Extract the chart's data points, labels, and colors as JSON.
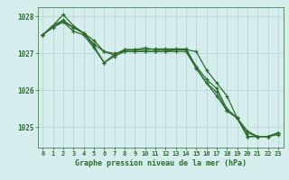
{
  "x": [
    0,
    1,
    2,
    3,
    4,
    5,
    6,
    7,
    8,
    9,
    10,
    11,
    12,
    13,
    14,
    15,
    16,
    17,
    18,
    19,
    20,
    21,
    22,
    23
  ],
  "line1": [
    1027.5,
    1027.7,
    1027.85,
    1027.7,
    1027.55,
    1027.25,
    1027.05,
    1027.0,
    1027.05,
    1027.05,
    1027.05,
    1027.05,
    1027.05,
    1027.1,
    1027.1,
    1026.6,
    1026.2,
    1025.85,
    1025.45,
    1025.25,
    1024.75,
    1024.75,
    1024.75,
    1024.85
  ],
  "line2": [
    1027.5,
    1027.75,
    1028.05,
    1027.75,
    1027.55,
    1027.2,
    1026.75,
    1026.97,
    1027.1,
    1027.1,
    1027.15,
    1027.1,
    1027.1,
    1027.1,
    1027.1,
    1027.05,
    1026.55,
    1026.2,
    1025.85,
    1025.25,
    1024.9,
    1024.75,
    1024.75,
    1024.85
  ],
  "line3": [
    1027.5,
    1027.75,
    1027.85,
    1027.6,
    1027.5,
    1027.15,
    1026.75,
    1026.92,
    1027.05,
    1027.05,
    1027.05,
    1027.05,
    1027.05,
    1027.05,
    1027.05,
    1026.6,
    1026.2,
    1025.95,
    1025.45,
    1025.25,
    1024.75,
    1024.75,
    1024.75,
    1024.85
  ],
  "line4": [
    1027.5,
    1027.75,
    1027.9,
    1027.7,
    1027.55,
    1027.35,
    1027.05,
    1026.95,
    1027.1,
    1027.1,
    1027.1,
    1027.12,
    1027.12,
    1027.12,
    1027.12,
    1026.65,
    1026.3,
    1026.05,
    1025.5,
    1025.25,
    1024.85,
    1024.75,
    1024.75,
    1024.8
  ],
  "bg_color": "#d5eeed",
  "grid_color": "#aed4d2",
  "line_color": "#2d6b2d",
  "xlabel": "Graphe pression niveau de la mer (hPa)",
  "ylim": [
    1024.45,
    1028.25
  ],
  "yticks": [
    1025,
    1026,
    1027,
    1028
  ],
  "xticks": [
    0,
    1,
    2,
    3,
    4,
    5,
    6,
    7,
    8,
    9,
    10,
    11,
    12,
    13,
    14,
    15,
    16,
    17,
    18,
    19,
    20,
    21,
    22,
    23
  ]
}
